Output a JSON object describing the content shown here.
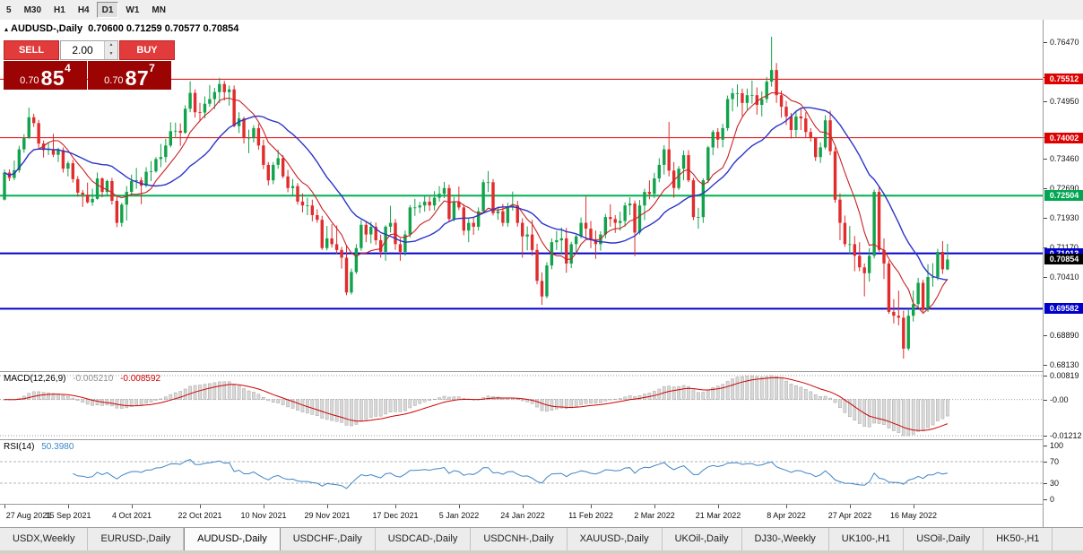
{
  "toolbar": {
    "timeframes": [
      {
        "label": "5",
        "active": false
      },
      {
        "label": "M30",
        "active": false
      },
      {
        "label": "H1",
        "active": false
      },
      {
        "label": "H4",
        "active": false
      },
      {
        "label": "D1",
        "active": true
      },
      {
        "label": "W1",
        "active": false
      },
      {
        "label": "MN",
        "active": false
      }
    ]
  },
  "icons": {
    "title_marker": "▴",
    "spin_up": "▲",
    "spin_down": "▼"
  },
  "chart_title": {
    "symbol": "AUDUSD-,Daily",
    "ohlc": "0.70600 0.71259 0.70577 0.70854"
  },
  "trade_panel": {
    "sell_label": "SELL",
    "buy_label": "BUY",
    "volume": "2.00",
    "sell_price_prefix": "0.70",
    "sell_price_big": "85",
    "sell_price_sup": "4",
    "buy_price_prefix": "0.70",
    "buy_price_big": "87",
    "buy_price_sup": "7"
  },
  "price_axis": {
    "ticks": [
      "0.76470",
      "0.75570",
      "0.74950",
      "0.74010",
      "0.73460",
      "0.72690",
      "0.71930",
      "0.71170",
      "0.70410",
      "0.68890",
      "0.68130"
    ],
    "badges": [
      {
        "text": "0.75512",
        "price": 0.75512,
        "color": "#dd0000"
      },
      {
        "text": "0.74002",
        "price": 0.74002,
        "color": "#dd0000"
      },
      {
        "text": "0.72504",
        "price": 0.72504,
        "color": "#00a651"
      },
      {
        "text": "0.71013",
        "price": 0.71013,
        "color": "#0000c8"
      },
      {
        "text": "0.69582",
        "price": 0.69582,
        "color": "#0000c8"
      },
      {
        "text": "0.70854",
        "price": 0.70854,
        "color": "#000000"
      }
    ]
  },
  "hlines": [
    {
      "price": 0.75512,
      "color": "#e00000",
      "width": 1
    },
    {
      "price": 0.74002,
      "color": "#e00000",
      "width": 1
    },
    {
      "price": 0.72504,
      "color": "#00b050",
      "width": 2
    },
    {
      "price": 0.71013,
      "color": "#0000cc",
      "width": 2
    },
    {
      "price": 0.69582,
      "color": "#0000cc",
      "width": 2
    }
  ],
  "macd": {
    "label": "MACD(12,26,9)",
    "value_main": "-0.005210",
    "value_signal": "-0.008592",
    "axis": [
      "0.00819",
      "-0.00",
      "-0.01212"
    ]
  },
  "rsi": {
    "label": "RSI(14)",
    "value": "50.3980",
    "axis": [
      "100",
      "70",
      "30",
      "0"
    ],
    "levels": [
      70,
      30
    ]
  },
  "tabs": [
    {
      "label": "USDX,Weekly",
      "active": false
    },
    {
      "label": "EURUSD-,Daily",
      "active": false
    },
    {
      "label": "AUDUSD-,Daily",
      "active": true
    },
    {
      "label": "USDCHF-,Daily",
      "active": false
    },
    {
      "label": "USDCAD-,Daily",
      "active": false
    },
    {
      "label": "USDCNH-,Daily",
      "active": false
    },
    {
      "label": "XAUUSD-,Daily",
      "active": false
    },
    {
      "label": "UKOil-,Daily",
      "active": false
    },
    {
      "label": "DJ30-,Weekly",
      "active": false
    },
    {
      "label": "UK100-,H1",
      "active": false
    },
    {
      "label": "USOil-,Daily",
      "active": false
    },
    {
      "label": "HK50-,H1",
      "active": false
    }
  ],
  "colors": {
    "bull": "#12a24b",
    "bear": "#e02c2c",
    "ma_fast": "#c82222",
    "ma_slow": "#2b35c8",
    "macd_hist": "#d9d9d9",
    "macd_hist_border": "#a6a6a6",
    "macd_signal": "#d00000",
    "rsi_line": "#3d85c8",
    "macd_value_main": "#909090",
    "macd_value_signal": "#d00000",
    "rsi_value": "#3d85c8"
  },
  "chart_data": {
    "type": "candlestick",
    "symbol": "AUDUSD-,Daily",
    "last_ohlc": {
      "open": "0.70600",
      "high": "0.71259",
      "low": "0.70577",
      "close": "0.70854"
    },
    "first_open": 0.724,
    "x_labels": [
      {
        "i": 0,
        "t": "27 Aug 2021"
      },
      {
        "i": 13,
        "t": "15 Sep 2021"
      },
      {
        "i": 26,
        "t": "4 Oct 2021"
      },
      {
        "i": 40,
        "t": "22 Oct 2021"
      },
      {
        "i": 53,
        "t": "10 Nov 2021"
      },
      {
        "i": 66,
        "t": "29 Nov 2021"
      },
      {
        "i": 80,
        "t": "17 Dec 2021"
      },
      {
        "i": 93,
        "t": "5 Jan 2022"
      },
      {
        "i": 106,
        "t": "24 Jan 2022"
      },
      {
        "i": 120,
        "t": "11 Feb 2022"
      },
      {
        "i": 133,
        "t": "2 Mar 2022"
      },
      {
        "i": 146,
        "t": "21 Mar 2022"
      },
      {
        "i": 160,
        "t": "8 Apr 2022"
      },
      {
        "i": 173,
        "t": "27 Apr 2022"
      },
      {
        "i": 186,
        "t": "16 May 2022"
      }
    ],
    "candles": [
      [
        0.7318,
        0.7238,
        0.731
      ],
      [
        0.7318,
        0.7288,
        0.7296
      ],
      [
        0.7341,
        0.729,
        0.7316
      ],
      [
        0.7379,
        0.731,
        0.737
      ],
      [
        0.7409,
        0.7361,
        0.74
      ],
      [
        0.7478,
        0.7397,
        0.7453
      ],
      [
        0.7462,
        0.7428,
        0.7438
      ],
      [
        0.7446,
        0.7371,
        0.7385
      ],
      [
        0.7393,
        0.7349,
        0.7368
      ],
      [
        0.7389,
        0.7355,
        0.737
      ],
      [
        0.741,
        0.735,
        0.7356
      ],
      [
        0.7374,
        0.7337,
        0.7368
      ],
      [
        0.7375,
        0.731,
        0.732
      ],
      [
        0.734,
        0.73,
        0.7334
      ],
      [
        0.7343,
        0.7284,
        0.7293
      ],
      [
        0.7301,
        0.7248,
        0.7258
      ],
      [
        0.7265,
        0.7221,
        0.7253
      ],
      [
        0.7284,
        0.723,
        0.7233
      ],
      [
        0.7268,
        0.7224,
        0.7242
      ],
      [
        0.731,
        0.724,
        0.7295
      ],
      [
        0.7298,
        0.7246,
        0.726
      ],
      [
        0.7292,
        0.7252,
        0.7288
      ],
      [
        0.7296,
        0.7227,
        0.7237
      ],
      [
        0.7247,
        0.7169,
        0.718
      ],
      [
        0.7232,
        0.717,
        0.7227
      ],
      [
        0.7275,
        0.7186,
        0.726
      ],
      [
        0.7305,
        0.725,
        0.7288
      ],
      [
        0.7322,
        0.7268,
        0.729
      ],
      [
        0.7298,
        0.7228,
        0.7276
      ],
      [
        0.7324,
        0.7272,
        0.7312
      ],
      [
        0.734,
        0.7288,
        0.7313
      ],
      [
        0.735,
        0.731,
        0.7345
      ],
      [
        0.7384,
        0.7324,
        0.735
      ],
      [
        0.7397,
        0.7336,
        0.738
      ],
      [
        0.744,
        0.7375,
        0.7417
      ],
      [
        0.7439,
        0.74,
        0.7418
      ],
      [
        0.7437,
        0.7379,
        0.7413
      ],
      [
        0.7484,
        0.741,
        0.7475
      ],
      [
        0.7546,
        0.7466,
        0.7516
      ],
      [
        0.7525,
        0.7452,
        0.7466
      ],
      [
        0.749,
        0.7442,
        0.7465
      ],
      [
        0.7507,
        0.745,
        0.7488
      ],
      [
        0.7536,
        0.748,
        0.75
      ],
      [
        0.7529,
        0.7474,
        0.7518
      ],
      [
        0.7555,
        0.7489,
        0.7539
      ],
      [
        0.7547,
        0.7496,
        0.7518
      ],
      [
        0.7535,
        0.7483,
        0.7525
      ],
      [
        0.7535,
        0.7427,
        0.743
      ],
      [
        0.7466,
        0.7412,
        0.745
      ],
      [
        0.7454,
        0.7385,
        0.74
      ],
      [
        0.7421,
        0.736,
        0.74
      ],
      [
        0.7432,
        0.7388,
        0.7425
      ],
      [
        0.7436,
        0.7369,
        0.738
      ],
      [
        0.7395,
        0.7319,
        0.733
      ],
      [
        0.7337,
        0.7277,
        0.729
      ],
      [
        0.7337,
        0.728,
        0.733
      ],
      [
        0.7369,
        0.732,
        0.7347
      ],
      [
        0.7355,
        0.7295,
        0.73
      ],
      [
        0.7317,
        0.7259,
        0.727
      ],
      [
        0.7293,
        0.725,
        0.7275
      ],
      [
        0.7283,
        0.7227,
        0.7235
      ],
      [
        0.7256,
        0.7207,
        0.7225
      ],
      [
        0.7245,
        0.72,
        0.7225
      ],
      [
        0.724,
        0.7184,
        0.72
      ],
      [
        0.7215,
        0.718,
        0.7188
      ],
      [
        0.7198,
        0.711,
        0.7115
      ],
      [
        0.7172,
        0.7109,
        0.714
      ],
      [
        0.7177,
        0.7116,
        0.7125
      ],
      [
        0.7173,
        0.71,
        0.711
      ],
      [
        0.7118,
        0.7062,
        0.709
      ],
      [
        0.712,
        0.6993,
        0.7
      ],
      [
        0.7062,
        0.6995,
        0.7053
      ],
      [
        0.7125,
        0.7048,
        0.7115
      ],
      [
        0.7187,
        0.7108,
        0.7175
      ],
      [
        0.7185,
        0.713,
        0.715
      ],
      [
        0.7183,
        0.7127,
        0.717
      ],
      [
        0.7181,
        0.7123,
        0.7135
      ],
      [
        0.715,
        0.709,
        0.7105
      ],
      [
        0.7174,
        0.7082,
        0.717
      ],
      [
        0.7224,
        0.7155,
        0.718
      ],
      [
        0.719,
        0.711,
        0.7125
      ],
      [
        0.714,
        0.7082,
        0.7105
      ],
      [
        0.716,
        0.7095,
        0.715
      ],
      [
        0.7226,
        0.7142,
        0.722
      ],
      [
        0.7242,
        0.7198,
        0.722
      ],
      [
        0.7234,
        0.7205,
        0.7225
      ],
      [
        0.725,
        0.7209,
        0.7235
      ],
      [
        0.7248,
        0.7211,
        0.7225
      ],
      [
        0.7262,
        0.7212,
        0.7245
      ],
      [
        0.7275,
        0.7235,
        0.7255
      ],
      [
        0.7286,
        0.7244,
        0.727
      ],
      [
        0.7279,
        0.7183,
        0.719
      ],
      [
        0.7247,
        0.7184,
        0.7235
      ],
      [
        0.7274,
        0.7213,
        0.722
      ],
      [
        0.7229,
        0.7148,
        0.716
      ],
      [
        0.7192,
        0.713,
        0.718
      ],
      [
        0.7194,
        0.7149,
        0.717
      ],
      [
        0.722,
        0.716,
        0.721
      ],
      [
        0.7292,
        0.7205,
        0.7285
      ],
      [
        0.7314,
        0.726,
        0.7285
      ],
      [
        0.7293,
        0.7199,
        0.7205
      ],
      [
        0.7222,
        0.7188,
        0.721
      ],
      [
        0.7229,
        0.7171,
        0.718
      ],
      [
        0.7232,
        0.717,
        0.722
      ],
      [
        0.7261,
        0.7212,
        0.7225
      ],
      [
        0.7237,
        0.717,
        0.718
      ],
      [
        0.7192,
        0.709,
        0.7145
      ],
      [
        0.7171,
        0.7109,
        0.715
      ],
      [
        0.7188,
        0.7095,
        0.711
      ],
      [
        0.7126,
        0.7021,
        0.703
      ],
      [
        0.7052,
        0.6968,
        0.699
      ],
      [
        0.7078,
        0.6985,
        0.707
      ],
      [
        0.714,
        0.706,
        0.713
      ],
      [
        0.7159,
        0.711,
        0.7135
      ],
      [
        0.7168,
        0.71,
        0.714
      ],
      [
        0.7167,
        0.7051,
        0.7075
      ],
      [
        0.7131,
        0.7063,
        0.7125
      ],
      [
        0.7149,
        0.7101,
        0.7145
      ],
      [
        0.7194,
        0.714,
        0.718
      ],
      [
        0.7248,
        0.714,
        0.7165
      ],
      [
        0.7185,
        0.7115,
        0.7135
      ],
      [
        0.716,
        0.7087,
        0.7125
      ],
      [
        0.7158,
        0.7108,
        0.715
      ],
      [
        0.7203,
        0.714,
        0.7195
      ],
      [
        0.7228,
        0.717,
        0.719
      ],
      [
        0.72,
        0.7154,
        0.718
      ],
      [
        0.7209,
        0.716,
        0.7185
      ],
      [
        0.7233,
        0.717,
        0.7225
      ],
      [
        0.7246,
        0.72,
        0.723
      ],
      [
        0.7238,
        0.7094,
        0.7155
      ],
      [
        0.7239,
        0.715,
        0.7225
      ],
      [
        0.7268,
        0.7187,
        0.726
      ],
      [
        0.729,
        0.7241,
        0.7255
      ],
      [
        0.7309,
        0.7244,
        0.7295
      ],
      [
        0.7347,
        0.7285,
        0.733
      ],
      [
        0.7381,
        0.7305,
        0.737
      ],
      [
        0.7441,
        0.73,
        0.7315
      ],
      [
        0.7337,
        0.7245,
        0.727
      ],
      [
        0.7327,
        0.7265,
        0.732
      ],
      [
        0.7367,
        0.729,
        0.7355
      ],
      [
        0.7368,
        0.7285,
        0.729
      ],
      [
        0.7296,
        0.7187,
        0.7195
      ],
      [
        0.7219,
        0.7165,
        0.7195
      ],
      [
        0.7295,
        0.718,
        0.729
      ],
      [
        0.7379,
        0.7283,
        0.7375
      ],
      [
        0.742,
        0.7355,
        0.7415
      ],
      [
        0.7425,
        0.7373,
        0.7395
      ],
      [
        0.7436,
        0.7375,
        0.7425
      ],
      [
        0.7509,
        0.7418,
        0.75
      ],
      [
        0.7528,
        0.7468,
        0.7515
      ],
      [
        0.7538,
        0.748,
        0.7515
      ],
      [
        0.7527,
        0.7455,
        0.749
      ],
      [
        0.7527,
        0.7473,
        0.751
      ],
      [
        0.7548,
        0.7488,
        0.751
      ],
      [
        0.753,
        0.746,
        0.7485
      ],
      [
        0.752,
        0.7455,
        0.75
      ],
      [
        0.7557,
        0.749,
        0.7545
      ],
      [
        0.7661,
        0.7532,
        0.7575
      ],
      [
        0.7593,
        0.749,
        0.751
      ],
      [
        0.7522,
        0.7452,
        0.748
      ],
      [
        0.7495,
        0.7433,
        0.7455
      ],
      [
        0.7464,
        0.7398,
        0.742
      ],
      [
        0.7468,
        0.74,
        0.7455
      ],
      [
        0.7475,
        0.742,
        0.745
      ],
      [
        0.7466,
        0.74,
        0.7415
      ],
      [
        0.7425,
        0.739,
        0.74
      ],
      [
        0.7395,
        0.734,
        0.735
      ],
      [
        0.7388,
        0.7335,
        0.7375
      ],
      [
        0.7458,
        0.737,
        0.7445
      ],
      [
        0.747,
        0.7355,
        0.7365
      ],
      [
        0.7375,
        0.7232,
        0.724
      ],
      [
        0.7256,
        0.7135,
        0.718
      ],
      [
        0.7199,
        0.7118,
        0.7125
      ],
      [
        0.7172,
        0.7098,
        0.7125
      ],
      [
        0.7146,
        0.7055,
        0.7095
      ],
      [
        0.713,
        0.7055,
        0.7065
      ],
      [
        0.7075,
        0.699,
        0.705
      ],
      [
        0.7115,
        0.7028,
        0.7095
      ],
      [
        0.7266,
        0.7088,
        0.726
      ],
      [
        0.7273,
        0.7105,
        0.711
      ],
      [
        0.714,
        0.7035,
        0.7075
      ],
      [
        0.7083,
        0.6945,
        0.695
      ],
      [
        0.6983,
        0.692,
        0.694
      ],
      [
        0.7005,
        0.6915,
        0.6935
      ],
      [
        0.6953,
        0.6829,
        0.6855
      ],
      [
        0.6958,
        0.685,
        0.694
      ],
      [
        0.7005,
        0.6925,
        0.697
      ],
      [
        0.7038,
        0.696,
        0.7025
      ],
      [
        0.7033,
        0.695,
        0.6955
      ],
      [
        0.7073,
        0.695,
        0.704
      ],
      [
        0.7076,
        0.7015,
        0.704
      ],
      [
        0.7113,
        0.7032,
        0.7105
      ],
      [
        0.7133,
        0.7048,
        0.706
      ],
      [
        0.71259,
        0.70577,
        0.70854
      ]
    ]
  }
}
